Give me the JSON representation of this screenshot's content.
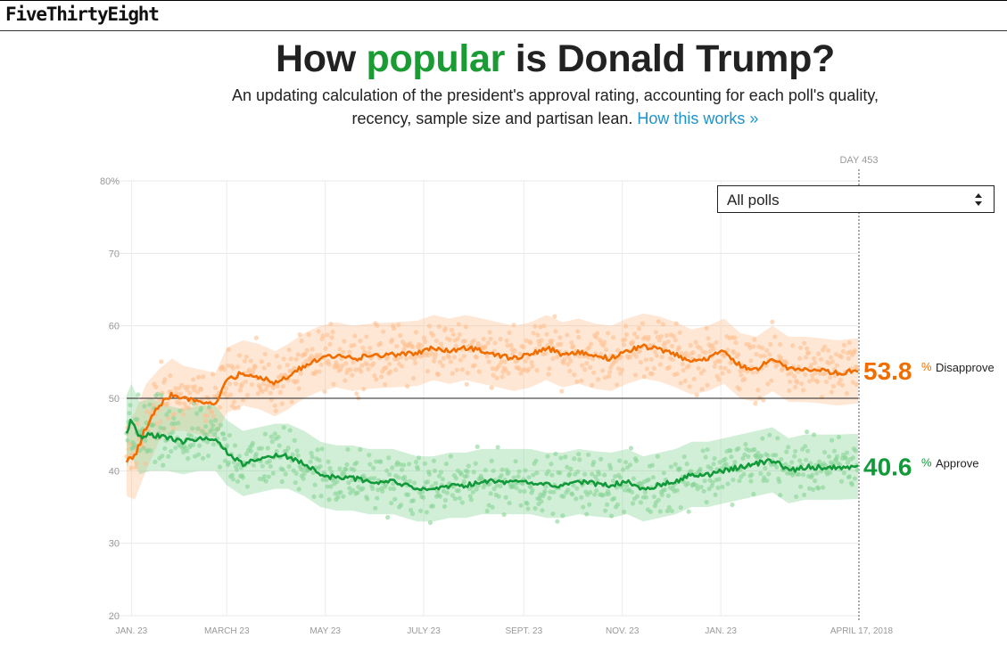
{
  "brand": "FiveThirtyEight",
  "headline": {
    "before": "How ",
    "highlight": "popular",
    "after": " is Donald Trump?"
  },
  "dek": {
    "line1": "An updating calculation of the president's approval rating, accounting for each poll's quality,",
    "line2": "recency, sample size and partisan lean. ",
    "link": "How this works »"
  },
  "filter": {
    "selected": "All polls"
  },
  "colors": {
    "approve": "#12993a",
    "disapprove": "#f06e00",
    "approve_light": "#87d496",
    "disapprove_light": "#fdbf90",
    "headline_accent": "#1a9b33",
    "link": "#1c93cc"
  },
  "chart_data": {
    "type": "line",
    "title": "How popular is Donald Trump?",
    "day_marker": "DAY 453",
    "ylim": [
      20,
      80
    ],
    "xlim_days": [
      0,
      453
    ],
    "reference_line": 50,
    "y_ticks": [
      {
        "value": 80,
        "label": "80%"
      },
      {
        "value": 70,
        "label": "70"
      },
      {
        "value": 60,
        "label": "60"
      },
      {
        "value": 50,
        "label": "50"
      },
      {
        "value": 40,
        "label": "40"
      },
      {
        "value": 30,
        "label": "30"
      },
      {
        "value": 20,
        "label": "20"
      }
    ],
    "x_ticks": [
      {
        "day": 3,
        "label": "JAN. 23"
      },
      {
        "day": 62,
        "label": "MARCH 23"
      },
      {
        "day": 123,
        "label": "MAY 23"
      },
      {
        "day": 184,
        "label": "JULY 23"
      },
      {
        "day": 246,
        "label": "SEPT. 23"
      },
      {
        "day": 307,
        "label": "NOV. 23"
      },
      {
        "day": 368,
        "label": "JAN. 23"
      },
      {
        "day": 453,
        "label": "APRIL 17, 2018"
      }
    ],
    "series": [
      {
        "name": "Disapprove",
        "final": "53.8",
        "final_suffix": "%",
        "label": "Disapprove",
        "days": [
          0,
          5,
          12,
          20,
          28,
          35,
          45,
          55,
          62,
          72,
          82,
          92,
          100,
          110,
          120,
          130,
          140,
          150,
          165,
          180,
          190,
          200,
          210,
          220,
          230,
          240,
          250,
          260,
          270,
          280,
          290,
          300,
          310,
          320,
          330,
          340,
          350,
          360,
          370,
          380,
          390,
          400,
          410,
          420,
          430,
          440,
          453
        ],
        "values": [
          41.5,
          42,
          46,
          49,
          50.5,
          50,
          49.5,
          49,
          52.5,
          53.5,
          53,
          52,
          53,
          54.5,
          55.5,
          56,
          55.5,
          55.8,
          56,
          56.2,
          57,
          56.5,
          57,
          56.5,
          56,
          55.5,
          56,
          57,
          56,
          56.5,
          55.8,
          55.5,
          56.5,
          57.2,
          56.8,
          56,
          55,
          55.5,
          56.5,
          54.5,
          54,
          55.5,
          54,
          54,
          53.8,
          53.5,
          53.8
        ],
        "band": [
          5,
          6,
          6,
          5,
          5,
          4.5,
          4.5,
          4.5,
          4.5,
          4.5,
          4.5,
          4.5,
          4.5,
          4.5,
          4.5,
          4.5,
          4.5,
          4.5,
          4.5,
          4.5,
          4.5,
          4.5,
          4.5,
          4.5,
          4.5,
          4.5,
          4.5,
          4.5,
          4.5,
          4.5,
          4.5,
          4.5,
          4.5,
          4.5,
          4.5,
          4.5,
          4.5,
          4.5,
          4.5,
          4.5,
          4.5,
          4.5,
          4.5,
          4.5,
          4.5,
          4.5,
          4.5
        ]
      },
      {
        "name": "Approve",
        "final": "40.6",
        "final_suffix": "%",
        "label": "Approve",
        "days": [
          0,
          3,
          8,
          15,
          25,
          35,
          45,
          55,
          62,
          72,
          82,
          92,
          100,
          110,
          120,
          130,
          140,
          150,
          165,
          180,
          190,
          200,
          210,
          220,
          230,
          240,
          250,
          260,
          270,
          280,
          290,
          300,
          310,
          320,
          330,
          340,
          350,
          360,
          370,
          380,
          390,
          400,
          410,
          420,
          430,
          440,
          453
        ],
        "values": [
          45.5,
          47,
          44.5,
          45,
          44.5,
          44,
          44.5,
          44.5,
          42.5,
          41,
          41.5,
          42,
          42,
          41,
          39.5,
          39,
          39,
          38.5,
          38.5,
          37.5,
          37.5,
          38,
          38,
          38.5,
          38.5,
          38.5,
          38.5,
          38,
          38,
          38.5,
          38.2,
          38,
          38.5,
          37.5,
          38,
          38.5,
          39.5,
          39.5,
          40,
          40.5,
          41,
          41.5,
          40,
          40.5,
          40.5,
          40.5,
          40.6
        ],
        "band": [
          5,
          5,
          5,
          5,
          4.5,
          4.5,
          4.5,
          4.5,
          4.5,
          4.5,
          4.5,
          4.5,
          4.5,
          4.5,
          4.5,
          4.5,
          4.5,
          4.5,
          4.5,
          4.5,
          4.5,
          4.5,
          4.5,
          4.5,
          4.5,
          4.5,
          4.5,
          4.5,
          4.5,
          4.5,
          4.5,
          4.5,
          4.5,
          4.5,
          4.5,
          4.5,
          4.5,
          4.5,
          4.5,
          4.5,
          4.5,
          4.5,
          4.5,
          4.5,
          4.5,
          4.5,
          4.5
        ]
      }
    ]
  }
}
